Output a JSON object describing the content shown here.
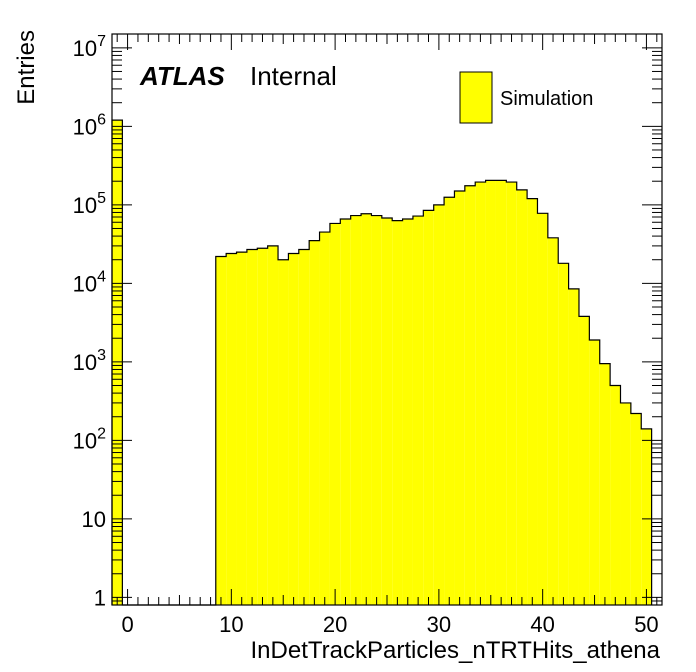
{
  "chart_data": {
    "type": "bar",
    "style": "histogram",
    "bin_width": 1,
    "x_bins": [
      -1,
      0,
      1,
      2,
      3,
      4,
      5,
      6,
      7,
      8,
      9,
      10,
      11,
      12,
      13,
      14,
      15,
      16,
      17,
      18,
      19,
      20,
      21,
      22,
      23,
      24,
      25,
      26,
      27,
      28,
      29,
      30,
      31,
      32,
      33,
      34,
      35,
      36,
      37,
      38,
      39,
      40,
      41,
      42,
      43,
      44,
      45,
      46,
      47,
      48,
      49,
      50
    ],
    "values": [
      1200000,
      0,
      0,
      0,
      0,
      0,
      0,
      0,
      0,
      0,
      22000,
      24000,
      25000,
      27000,
      28000,
      30000,
      20000,
      24000,
      27000,
      35000,
      45000,
      58000,
      66000,
      73000,
      77000,
      73000,
      68000,
      63000,
      66000,
      72000,
      85000,
      100000,
      125000,
      150000,
      175000,
      195000,
      205000,
      205000,
      195000,
      155000,
      120000,
      78000,
      38000,
      18000,
      8500,
      3800,
      1900,
      950,
      500,
      300,
      220,
      140
    ],
    "xlim": [
      -1.5,
      51.5
    ],
    "ylim": [
      0.8,
      15000000
    ],
    "y_scale": "log",
    "x_ticks": [
      0,
      10,
      20,
      30,
      40,
      50
    ],
    "y_ticks": [
      {
        "value": 1,
        "base": "1",
        "exp": ""
      },
      {
        "value": 10,
        "base": "10",
        "exp": ""
      },
      {
        "value": 100,
        "base": "10",
        "exp": "2"
      },
      {
        "value": 1000,
        "base": "10",
        "exp": "3"
      },
      {
        "value": 10000,
        "base": "10",
        "exp": "4"
      },
      {
        "value": 100000,
        "base": "10",
        "exp": "5"
      },
      {
        "value": 1000000,
        "base": "10",
        "exp": "6"
      },
      {
        "value": 10000000,
        "base": "10",
        "exp": "7"
      }
    ],
    "xlabel": "InDetTrackParticles_nTRTHits_athena",
    "ylabel": "Entries",
    "annotation": {
      "bold": "ATLAS",
      "normal": "Internal"
    },
    "legend": {
      "label": "Simulation",
      "position": "top-right"
    },
    "fill_color": "#ffff00",
    "line_color": "#000000"
  }
}
